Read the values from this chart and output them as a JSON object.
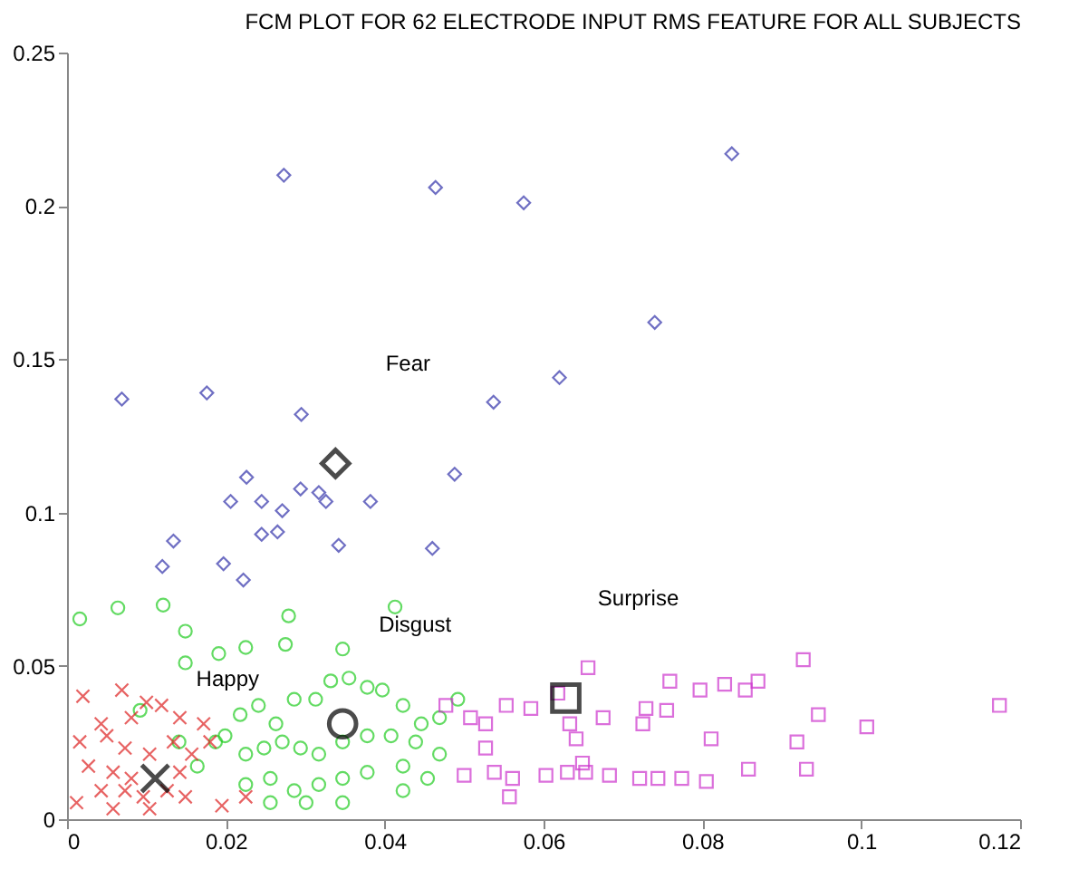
{
  "chart_data": {
    "type": "scatter",
    "title": "FCM PLOT FOR 62 ELECTRODE INPUT RMS FEATURE FOR ALL SUBJECTS",
    "xlim": [
      0,
      0.12
    ],
    "xticks": [
      0,
      0.02,
      0.04,
      0.06,
      0.08,
      0.1,
      0.12
    ],
    "ylim": [
      0,
      0.25
    ],
    "yticks": [
      0,
      0.05,
      0.1,
      0.15,
      0.2,
      0.25
    ],
    "grid": false,
    "annotations": [
      "Fear",
      "Disgust",
      "Happy",
      "Surprise"
    ],
    "series": [
      {
        "color": "#3333aa",
        "marker": "diamond",
        "x": [
          0.0273,
          0.0464,
          0.0575,
          0.0837,
          0.074,
          0.062,
          0.0537,
          0.0069,
          0.0176,
          0.0295,
          0.0488,
          0.0226,
          0.0206,
          0.0245,
          0.0294,
          0.0271,
          0.0326,
          0.0382,
          0.0317,
          0.0245,
          0.0265,
          0.0134,
          0.0342,
          0.012,
          0.0197,
          0.0222,
          0.046
        ],
        "values": [
          0.21,
          0.206,
          0.201,
          0.217,
          0.162,
          0.144,
          0.136,
          0.137,
          0.139,
          0.132,
          0.1125,
          0.1115,
          0.1036,
          0.1036,
          0.1077,
          0.1006,
          0.1036,
          0.1036,
          0.1065,
          0.0929,
          0.0937,
          0.0907,
          0.0893,
          0.0824,
          0.0833,
          0.078,
          0.0883
        ]
      },
      {
        "color": "#22cc22",
        "marker": "circle",
        "x": [
          0.0016,
          0.0064,
          0.0121,
          0.0149,
          0.0279,
          0.0413,
          0.0149,
          0.0191,
          0.0225,
          0.0275,
          0.0347,
          0.0092,
          0.0199,
          0.0218,
          0.0241,
          0.0263,
          0.0286,
          0.0313,
          0.0332,
          0.0355,
          0.0378,
          0.0397,
          0.0423,
          0.0446,
          0.0469,
          0.0492,
          0.0225,
          0.0248,
          0.0271,
          0.0294,
          0.0317,
          0.0347,
          0.0378,
          0.0408,
          0.0439,
          0.0225,
          0.0256,
          0.0286,
          0.0317,
          0.0347,
          0.0378,
          0.0423,
          0.0454,
          0.0347,
          0.0301,
          0.0256,
          0.0423,
          0.0469,
          0.0187,
          0.0164,
          0.0141
        ],
        "values": [
          0.0653,
          0.0689,
          0.0698,
          0.0613,
          0.0663,
          0.0692,
          0.051,
          0.054,
          0.056,
          0.057,
          0.0555,
          0.0355,
          0.0272,
          0.0341,
          0.0371,
          0.0311,
          0.0391,
          0.0391,
          0.0451,
          0.046,
          0.043,
          0.0421,
          0.0371,
          0.0311,
          0.0331,
          0.0391,
          0.0212,
          0.0232,
          0.0252,
          0.0232,
          0.0212,
          0.0252,
          0.0272,
          0.0272,
          0.0252,
          0.0113,
          0.0133,
          0.0093,
          0.0113,
          0.0133,
          0.0153,
          0.0173,
          0.0133,
          0.0054,
          0.0054,
          0.0054,
          0.0093,
          0.0212,
          0.0252,
          0.0173,
          0.0252
        ]
      },
      {
        "color": "#dd2222",
        "marker": "cross",
        "x": [
          0.002,
          0.0069,
          0.01,
          0.0119,
          0.0043,
          0.0081,
          0.0142,
          0.0172,
          0.0016,
          0.005,
          0.0073,
          0.0104,
          0.0134,
          0.0157,
          0.0027,
          0.0058,
          0.0081,
          0.0111,
          0.0142,
          0.0043,
          0.0073,
          0.0096,
          0.0126,
          0.0012,
          0.0058,
          0.0104,
          0.0149,
          0.018,
          0.0195,
          0.0225
        ],
        "values": [
          0.0401,
          0.0421,
          0.0381,
          0.0371,
          0.0311,
          0.0331,
          0.0331,
          0.0311,
          0.0252,
          0.0272,
          0.0232,
          0.0212,
          0.0252,
          0.0212,
          0.0173,
          0.0153,
          0.0133,
          null,
          0.0153,
          0.0093,
          0.0093,
          0.0073,
          0.0093,
          0.0054,
          0.0034,
          0.0034,
          0.0073,
          0.0252,
          0.0044,
          0.0073
        ]
      },
      {
        "color": "#cc33cc",
        "marker": "square",
        "x": [
          0.0656,
          0.0618,
          0.0759,
          0.0797,
          0.0828,
          0.0854,
          0.087,
          0.0927,
          0.0946,
          0.1007,
          0.1174,
          0.0725,
          0.0755,
          0.0729,
          0.0675,
          0.0641,
          0.0527,
          0.0553,
          0.0584,
          0.0811,
          0.0919,
          0.0858,
          0.0931,
          0.0805,
          0.0774,
          0.0744,
          0.0721,
          0.0683,
          0.0653,
          0.063,
          0.0603,
          0.0561,
          0.0538,
          0.05,
          0.0557,
          0.0477,
          0.0508,
          0.0649,
          0.0633,
          0.0527
        ],
        "values": [
          0.0494,
          0.0411,
          0.045,
          0.0421,
          0.044,
          0.0421,
          0.045,
          0.052,
          0.0341,
          0.0301,
          0.0371,
          0.0311,
          0.0355,
          0.0361,
          0.0331,
          0.0262,
          0.0311,
          0.0371,
          0.0361,
          0.0262,
          0.0252,
          0.0163,
          0.0163,
          0.0123,
          0.0133,
          0.0133,
          0.0133,
          0.0143,
          0.0153,
          0.0153,
          0.0143,
          0.0133,
          0.0153,
          0.0143,
          0.0073,
          0.0371,
          0.0331,
          0.0183,
          0.0311,
          0.0232
        ]
      },
      {
        "color": "#000000",
        "marker": "diamond",
        "x": [
          0.0338
        ],
        "values": [
          0.116
        ]
      },
      {
        "color": "#000000",
        "marker": "circle",
        "x": [
          0.0347
        ],
        "values": [
          0.0311
        ]
      },
      {
        "color": "#000000",
        "marker": "cross",
        "x": [
          0.0111
        ],
        "values": [
          0.0133
        ]
      },
      {
        "color": "#000000",
        "marker": "square",
        "x": [
          0.0628
        ],
        "values": [
          0.0395
        ]
      }
    ]
  }
}
